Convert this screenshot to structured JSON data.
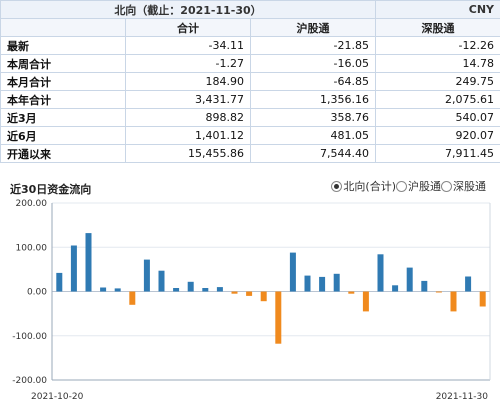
{
  "header": {
    "title": "北向（截止：2021-11-30）",
    "currency": "CNY"
  },
  "columns": [
    "合计",
    "沪股通",
    "深股通"
  ],
  "rows": [
    {
      "label": "最新",
      "values": [
        "-34.11",
        "-21.85",
        "-12.26"
      ]
    },
    {
      "label": "本周合计",
      "values": [
        "-1.27",
        "-16.05",
        "14.78"
      ]
    },
    {
      "label": "本月合计",
      "values": [
        "184.90",
        "-64.85",
        "249.75"
      ]
    },
    {
      "label": "本年合计",
      "values": [
        "3,431.77",
        "1,356.16",
        "2,075.61"
      ]
    },
    {
      "label": "近3月",
      "values": [
        "898.82",
        "358.76",
        "540.07"
      ]
    },
    {
      "label": "近6月",
      "values": [
        "1,401.12",
        "481.05",
        "920.07"
      ]
    },
    {
      "label": "开通以来",
      "values": [
        "15,455.86",
        "7,544.40",
        "7,911.45"
      ]
    }
  ],
  "chart_section": {
    "title": "近30日资金流向",
    "radio_options": [
      {
        "label": "北向(合计)",
        "checked": true
      },
      {
        "label": "沪股通",
        "checked": false
      },
      {
        "label": "深股通",
        "checked": false
      }
    ]
  },
  "chart_data": {
    "type": "bar",
    "title": "",
    "ylim": [
      -200,
      200
    ],
    "yticks": [
      "200.00",
      "100.00",
      "0.00",
      "-100.00",
      "-200.00"
    ],
    "x_start_label": "2021-10-20",
    "x_end_label": "2021-11-30",
    "grid": true,
    "colors": {
      "positive": "#2f7ab3",
      "negative": "#f08a1e"
    },
    "values": [
      42,
      104,
      132,
      9,
      7,
      -30,
      72,
      47,
      8,
      22,
      8,
      10,
      -5,
      -10,
      -22,
      -118,
      88,
      36,
      33,
      40,
      -5,
      -45,
      84,
      14,
      54,
      24,
      -2,
      -45,
      34,
      -34
    ]
  }
}
